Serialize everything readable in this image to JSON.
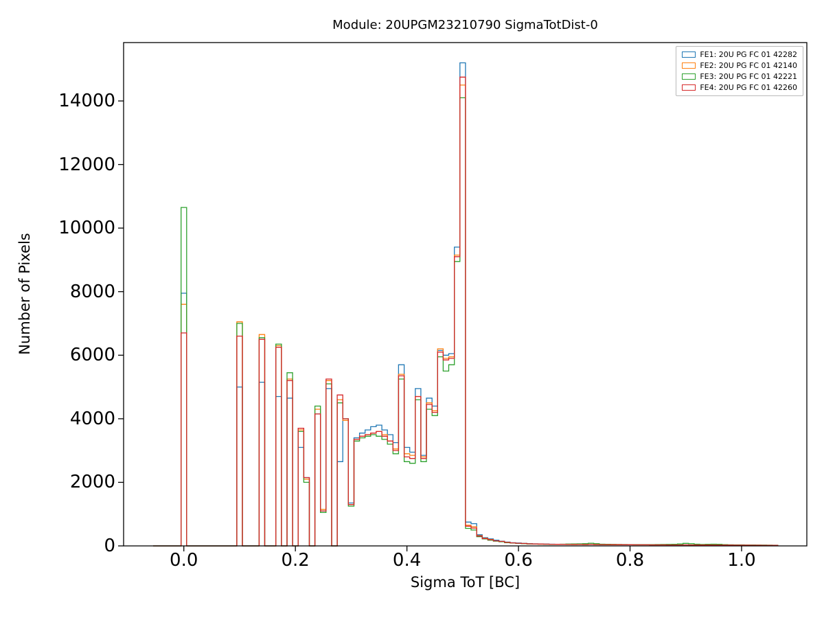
{
  "chart_data": {
    "type": "histogram-step",
    "title": "Module: 20UPGM23210790 SigmaTotDist-0",
    "xlabel": "Sigma ToT [BC]",
    "ylabel": "Number of Pixels",
    "xlim": [
      -0.108,
      1.117
    ],
    "ylim": [
      0,
      15837
    ],
    "grid": false,
    "legend_position": "upper right",
    "xticks": [
      0.0,
      0.2,
      0.4,
      0.6,
      0.8,
      1.0
    ],
    "xtick_labels": [
      "0.0",
      "0.2",
      "0.4",
      "0.6",
      "0.8",
      "1.0"
    ],
    "yticks": [
      0,
      2000,
      4000,
      6000,
      8000,
      10000,
      12000,
      14000
    ],
    "ytick_labels": [
      "0",
      "2000",
      "4000",
      "6000",
      "8000",
      "10000",
      "12000",
      "14000"
    ],
    "bin_width": 0.01,
    "x_start": -0.055,
    "x_end": 1.065,
    "series": [
      {
        "name": "FE1: 20U PG FC 01 42282",
        "color": "#1f77b4"
      },
      {
        "name": "FE2: 20U PG FC 01 42140",
        "color": "#ff7f0e"
      },
      {
        "name": "FE3: 20U PG FC 01 42221",
        "color": "#2ca02c"
      },
      {
        "name": "FE4: 20U PG FC 01 42260",
        "color": "#d62728"
      }
    ],
    "bins": [
      {
        "x": -0.005,
        "v": [
          7950,
          7600,
          10650,
          6700
        ]
      },
      {
        "x": 0.095,
        "v": [
          5000,
          7050,
          7000,
          6600
        ]
      },
      {
        "x": 0.135,
        "v": [
          5150,
          6650,
          6550,
          6500
        ]
      },
      {
        "x": 0.165,
        "v": [
          4700,
          6300,
          6350,
          6250
        ]
      },
      {
        "x": 0.185,
        "v": [
          4650,
          5250,
          5450,
          5200
        ]
      },
      {
        "x": 0.205,
        "v": [
          3100,
          3650,
          3600,
          3700
        ]
      },
      {
        "x": 0.215,
        "v": [
          2150,
          2100,
          2000,
          2150
        ]
      },
      {
        "x": 0.235,
        "v": [
          4150,
          4300,
          4400,
          4150
        ]
      },
      {
        "x": 0.245,
        "v": [
          1100,
          1150,
          1050,
          1100
        ]
      },
      {
        "x": 0.255,
        "v": [
          4950,
          5200,
          5100,
          5250
        ]
      },
      {
        "x": 0.275,
        "v": [
          2650,
          4600,
          4500,
          4750
        ]
      },
      {
        "x": 0.285,
        "v": [
          4000,
          3950,
          4000,
          4000
        ]
      },
      {
        "x": 0.295,
        "v": [
          1350,
          1300,
          1250,
          1300
        ]
      },
      {
        "x": 0.305,
        "v": [
          3400,
          3350,
          3300,
          3350
        ]
      },
      {
        "x": 0.315,
        "v": [
          3550,
          3450,
          3400,
          3450
        ]
      },
      {
        "x": 0.325,
        "v": [
          3650,
          3500,
          3450,
          3500
        ]
      },
      {
        "x": 0.335,
        "v": [
          3750,
          3550,
          3500,
          3550
        ]
      },
      {
        "x": 0.345,
        "v": [
          3800,
          3600,
          3450,
          3600
        ]
      },
      {
        "x": 0.355,
        "v": [
          3650,
          3500,
          3350,
          3450
        ]
      },
      {
        "x": 0.365,
        "v": [
          3500,
          3300,
          3200,
          3300
        ]
      },
      {
        "x": 0.375,
        "v": [
          3250,
          3050,
          2900,
          3000
        ]
      },
      {
        "x": 0.385,
        "v": [
          5700,
          5400,
          5250,
          5350
        ]
      },
      {
        "x": 0.395,
        "v": [
          3100,
          2900,
          2650,
          2800
        ]
      },
      {
        "x": 0.405,
        "v": [
          2950,
          2850,
          2600,
          2750
        ]
      },
      {
        "x": 0.415,
        "v": [
          4950,
          4700,
          4600,
          4700
        ]
      },
      {
        "x": 0.425,
        "v": [
          2850,
          2800,
          2650,
          2750
        ]
      },
      {
        "x": 0.435,
        "v": [
          4650,
          4500,
          4300,
          4450
        ]
      },
      {
        "x": 0.445,
        "v": [
          4400,
          4250,
          4100,
          4200
        ]
      },
      {
        "x": 0.455,
        "v": [
          6150,
          6200,
          5950,
          6100
        ]
      },
      {
        "x": 0.465,
        "v": [
          6000,
          5900,
          5500,
          5850
        ]
      },
      {
        "x": 0.475,
        "v": [
          6050,
          5950,
          5700,
          5900
        ]
      },
      {
        "x": 0.485,
        "v": [
          9400,
          9150,
          8950,
          9100
        ]
      },
      {
        "x": 0.495,
        "v": [
          15200,
          14500,
          14100,
          14750
        ]
      },
      {
        "x": 0.505,
        "v": [
          750,
          650,
          550,
          620
        ]
      },
      {
        "x": 0.515,
        "v": [
          700,
          600,
          500,
          560
        ]
      },
      {
        "x": 0.525,
        "v": [
          350,
          320,
          290,
          310
        ]
      },
      {
        "x": 0.535,
        "v": [
          260,
          240,
          220,
          230
        ]
      },
      {
        "x": 0.545,
        "v": [
          220,
          200,
          180,
          195
        ]
      },
      {
        "x": 0.555,
        "v": [
          180,
          160,
          150,
          160
        ]
      },
      {
        "x": 0.565,
        "v": [
          150,
          140,
          130,
          140
        ]
      },
      {
        "x": 0.575,
        "v": [
          120,
          110,
          100,
          110
        ]
      },
      {
        "x": 0.585,
        "v": [
          100,
          95,
          90,
          95
        ]
      },
      {
        "x": 0.595,
        "v": [
          90,
          85,
          80,
          85
        ]
      },
      {
        "x": 0.605,
        "v": [
          80,
          76,
          72,
          76
        ]
      },
      {
        "x": 0.615,
        "v": [
          70,
          65,
          60,
          65
        ]
      },
      {
        "x": 0.625,
        "v": [
          65,
          60,
          58,
          61
        ]
      },
      {
        "x": 0.635,
        "v": [
          60,
          55,
          55,
          58
        ]
      },
      {
        "x": 0.645,
        "v": [
          58,
          53,
          52,
          55
        ]
      },
      {
        "x": 0.655,
        "v": [
          55,
          50,
          50,
          52
        ]
      },
      {
        "x": 0.665,
        "v": [
          52,
          48,
          52,
          50
        ]
      },
      {
        "x": 0.675,
        "v": [
          50,
          45,
          55,
          48
        ]
      },
      {
        "x": 0.685,
        "v": [
          48,
          44,
          58,
          46
        ]
      },
      {
        "x": 0.695,
        "v": [
          45,
          42,
          60,
          45
        ]
      },
      {
        "x": 0.705,
        "v": [
          46,
          43,
          65,
          45
        ]
      },
      {
        "x": 0.715,
        "v": [
          45,
          42,
          70,
          44
        ]
      },
      {
        "x": 0.725,
        "v": [
          48,
          45,
          85,
          46
        ]
      },
      {
        "x": 0.735,
        "v": [
          45,
          42,
          70,
          44
        ]
      },
      {
        "x": 0.745,
        "v": [
          42,
          40,
          55,
          42
        ]
      },
      {
        "x": 0.755,
        "v": [
          40,
          38,
          50,
          40
        ]
      },
      {
        "x": 0.765,
        "v": [
          39,
          37,
          47,
          39
        ]
      },
      {
        "x": 0.775,
        "v": [
          38,
          36,
          45,
          38
        ]
      },
      {
        "x": 0.785,
        "v": [
          37,
          35,
          44,
          37
        ]
      },
      {
        "x": 0.795,
        "v": [
          36,
          34,
          42,
          36
        ]
      },
      {
        "x": 0.805,
        "v": [
          35,
          33,
          41,
          35
        ]
      },
      {
        "x": 0.815,
        "v": [
          35,
          33,
          40,
          34
        ]
      },
      {
        "x": 0.825,
        "v": [
          34,
          32,
          40,
          34
        ]
      },
      {
        "x": 0.835,
        "v": [
          33,
          31,
          42,
          33
        ]
      },
      {
        "x": 0.845,
        "v": [
          33,
          31,
          43,
          33
        ]
      },
      {
        "x": 0.855,
        "v": [
          32,
          30,
          45,
          32
        ]
      },
      {
        "x": 0.865,
        "v": [
          31,
          30,
          47,
          31
        ]
      },
      {
        "x": 0.875,
        "v": [
          30,
          30,
          50,
          31
        ]
      },
      {
        "x": 0.885,
        "v": [
          31,
          30,
          60,
          31
        ]
      },
      {
        "x": 0.895,
        "v": [
          32,
          30,
          80,
          32
        ]
      },
      {
        "x": 0.905,
        "v": [
          30,
          28,
          70,
          30
        ]
      },
      {
        "x": 0.915,
        "v": [
          29,
          28,
          55,
          29
        ]
      },
      {
        "x": 0.925,
        "v": [
          28,
          27,
          45,
          28
        ]
      },
      {
        "x": 0.935,
        "v": [
          28,
          26,
          50,
          28
        ]
      },
      {
        "x": 0.945,
        "v": [
          27,
          26,
          55,
          27
        ]
      },
      {
        "x": 0.955,
        "v": [
          26,
          25,
          50,
          26
        ]
      },
      {
        "x": 0.965,
        "v": [
          25,
          25,
          40,
          25
        ]
      },
      {
        "x": 0.975,
        "v": [
          25,
          24,
          35,
          25
        ]
      },
      {
        "x": 0.985,
        "v": [
          24,
          24,
          33,
          24
        ]
      },
      {
        "x": 0.995,
        "v": [
          24,
          23,
          32,
          24
        ]
      },
      {
        "x": 1.005,
        "v": [
          23,
          22,
          30,
          23
        ]
      },
      {
        "x": 1.015,
        "v": [
          22,
          22,
          28,
          22
        ]
      },
      {
        "x": 1.025,
        "v": [
          21,
          21,
          26,
          21
        ]
      },
      {
        "x": 1.035,
        "v": [
          20,
          20,
          25,
          20
        ]
      },
      {
        "x": 1.045,
        "v": [
          19,
          19,
          23,
          19
        ]
      },
      {
        "x": 1.055,
        "v": [
          18,
          18,
          22,
          18
        ]
      }
    ]
  }
}
